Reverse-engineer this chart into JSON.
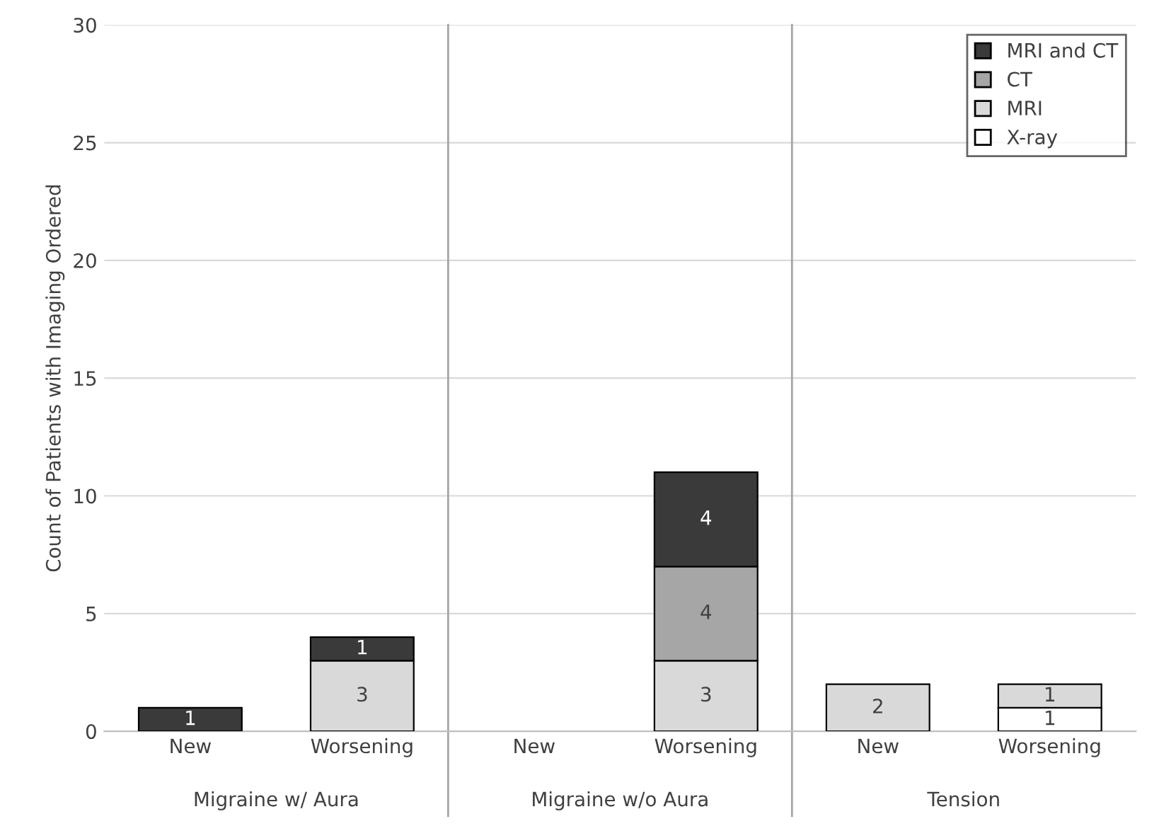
{
  "chart_data": {
    "type": "bar",
    "stacked": true,
    "ylabel": "Count of Patients with Imaging Ordered",
    "categories": [
      "New",
      "Worsening",
      "New",
      "Worsening",
      "New",
      "Worsening"
    ],
    "annotations": [
      "Migraine w/ Aura",
      "Migraine w/o Aura",
      "Tension"
    ],
    "series": [
      {
        "name": "X-ray",
        "color": "#ffffff",
        "values": [
          null,
          null,
          null,
          null,
          null,
          1
        ]
      },
      {
        "name": "MRI",
        "color": "#d9d9d9",
        "values": [
          null,
          3,
          null,
          3,
          2,
          1
        ]
      },
      {
        "name": "CT",
        "color": "#a6a6a6",
        "values": [
          null,
          null,
          null,
          4,
          null,
          null
        ]
      },
      {
        "name": "MRI and CT",
        "color": "#3a3a3a",
        "values": [
          1,
          1,
          null,
          4,
          null,
          null
        ]
      }
    ],
    "ylim": [
      0,
      30
    ],
    "yticks": [
      0,
      5,
      10,
      15,
      20,
      25,
      30
    ],
    "grid": "y",
    "legend": "top right",
    "data_labels": true
  }
}
